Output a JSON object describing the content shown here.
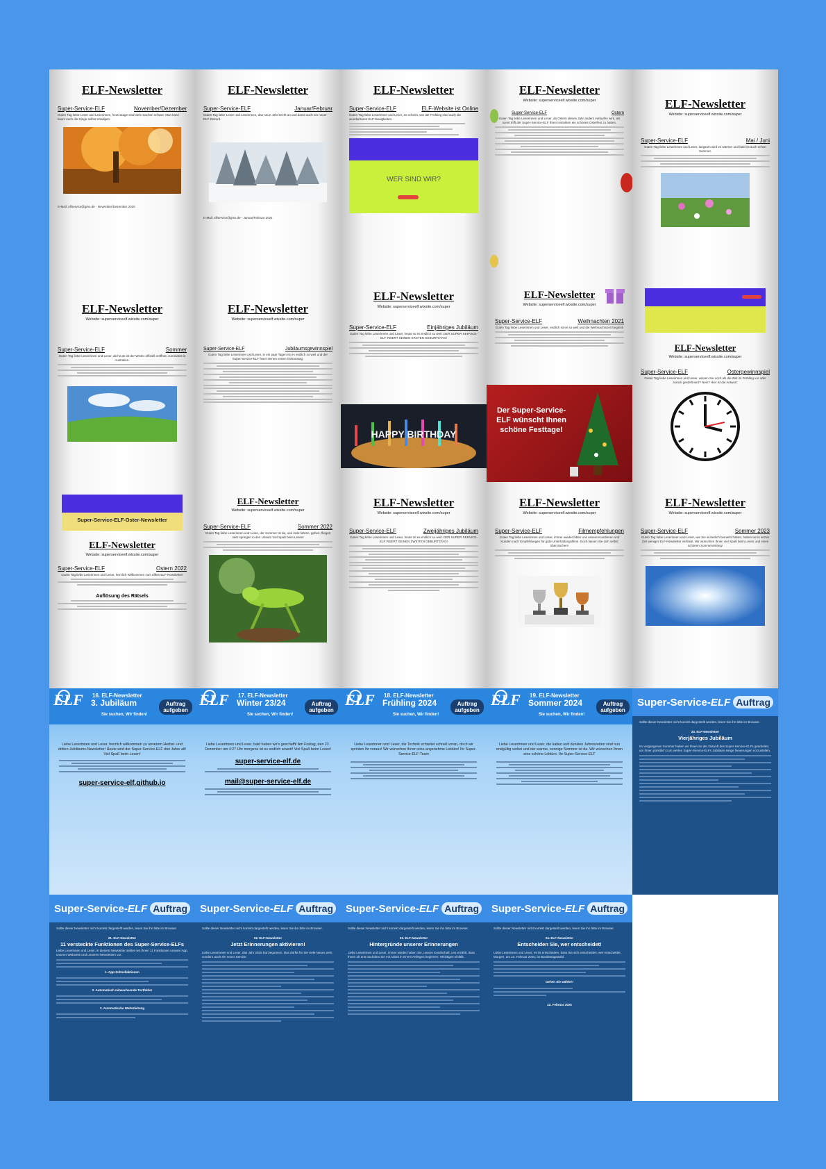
{
  "tiles": [
    {
      "title": "ELF-Newsletter",
      "left": "Super-Service-ELF",
      "right": "November/Dezember",
      "email": "E-Mail: elfservice@gmx.de  ·  November/Dezember 2020",
      "text": "Guten Tag liebe Leser und Leserinnen, heutzutage sind viele Sachen schwer. Man kann kaum noch die Dinge selbst erledigen."
    },
    {
      "title": "ELF-Newsletter",
      "left": "Super-Service-ELF",
      "right": "Januar/Februar",
      "email": "E-Mail: elfservice@gmx.de  ·  Januar/Februar 2021",
      "text": "Guten Tag liebe Leser und Leserinnen, das neue Jahr bricht an und damit auch ein neuer ELF-Rekord."
    },
    {
      "title": "ELF-Newsletter",
      "left": "Super-Service-ELF",
      "right": "ELF-Website ist Online",
      "banner": "WER SIND WIR?",
      "text": "Guten Tag liebe Leserinnen und Leser, es scheint, wie der Frühling sind auch die wunderbaren ELF-Neuigkeiten."
    },
    {
      "title": "ELF-Newsletter",
      "web": "Website: superserviceelf.wixsite.com/super",
      "left": "Super-Service-ELF",
      "right": "Ostern",
      "text": "Guten Tag liebe Leserinnen und Leser, da Ostern dieses Jahr anders verlaufen wird, als sonst trifft der Super-Service-ELF Ihren Instinkten ein schönes Osterfest zu haben."
    },
    {
      "title": "ELF-Newsletter",
      "web": "Website: superserviceelf.wixsite.com/super",
      "left": "Super-Service-ELF",
      "right": "Mai / Juni",
      "text": "Guten Tag liebe Leserinnen und Leser, langsam wird es wärmer und bald ist auch schon Sommer."
    },
    {
      "title": "ELF-Newsletter",
      "web": "Website: superserviceelf.wixsite.com/super",
      "left": "Super-Service-ELF",
      "right": "Sommer",
      "text": "Guten Tag liebe Leserinnen und Leser, ab heute ist der Winter offiziell eröffnet, zumindest in Australien."
    },
    {
      "title": "ELF-Newsletter",
      "web": "Website: superserviceelf.wixsite.com/super",
      "left": "Super-Service-ELF",
      "right": "Jubiläumsgewinnspiel",
      "text": "Guten Tag liebe Leserinnen und Leser, in ein paar Tagen ist es endlich so weit und der Super-Service-ELF feiert seinen ersten Geburtstag."
    },
    {
      "title": "ELF-Newsletter",
      "web": "Website: superserviceelf.wixsite.com/super",
      "left": "Super-Service-ELF",
      "right": "Einjähriges Jubiläum",
      "banner": "HAPPY BIRTHDAY",
      "text": "Guten Tag liebe Leserinnen und Leser, heute ist es endlich so weit: DER SUPER-SERVICE-ELF FEIERT SEINEN ERSTEN GEBURTSTAG!"
    },
    {
      "title": "ELF-Newsletter",
      "web": "Website: superserviceelf.wixsite.com/super",
      "left": "Super-Service-ELF",
      "right": "Weihnachten 2021",
      "banner": "Der Super-Service-ELF wünscht Ihnen schöne Festtage!",
      "text": "Guten Tag liebe Leserinnen und Leser, endlich ist es so weit und die Weihnachtszeit beginnt!"
    },
    {
      "title": "ELF-Newsletter",
      "web": "Website: superserviceelf.wixsite.com/super",
      "left": "Super-Service-ELF",
      "right": "Ostergewinnspiel",
      "text": "Guten Tag liebe Leserinnen und Leser, wissen Sie noch als die Zeit im Frühling vor oder zurück gestellt wird? Nein? Hier ist die Antwort:"
    },
    {
      "title": "ELF-Newsletter",
      "web": "Website: superserviceelf.wixsite.com/super",
      "left": "Super-Service-ELF",
      "right": "Ostern 2022",
      "banner": "Super-Service-ELF-Oster-Newsletter",
      "sub": "Auflösung des Rätsels",
      "text": "Guten Tag liebe Leserinnen und Leser, herzlich Willkommen zum elften ELF-Newsletter!"
    },
    {
      "title": "ELF-Newsletter",
      "web": "Website: superserviceelf.wixsite.com/super",
      "left": "Super-Service-ELF",
      "right": "Sommer 2022",
      "text": "Guten Tag liebe Leserinnen und Leser, der Sommer ist da, und viele fahren, gehen, fliegen oder springen in den Urlaub! Viel Spaß beim Lesen!"
    },
    {
      "title": "ELF-Newsletter",
      "web": "Website: superserviceelf.wixsite.com/super",
      "left": "Super-Service-ELF",
      "right": "Zweijähriges Jubiläum",
      "text": "Guten Tag liebe Leserinnen und Leser, heute ist es endlich so weit: DER SUPER-SERVICE-ELF FEIERT SEINEN ZWEITEN GEBURTSTAG!"
    },
    {
      "title": "ELF-Newsletter",
      "web": "Website: superserviceelf.wixsite.com/super",
      "left": "Super-Service-ELF",
      "right": "Filmempfehlungen",
      "text": "Guten Tag liebe Leserinnen und Leser, immer wieder bitten uns unsere Kundinnen und Kunden nach Empfehlungen für gute Unterhaltungsfilme. Doch lassen Sie sich selbst überraschen!"
    },
    {
      "title": "ELF-Newsletter",
      "web": "Website: superserviceelf.wixsite.com/super",
      "left": "Super-Service-ELF",
      "right": "Sommer 2023",
      "text": "Guten Tag liebe Leserinnen und Leser, wie Sie sicherlich bemerkt haben, haben wir in letzter Zeit weniger ELF-Newsletter verfasst. Wir wünschen Ihnen viel Spaß beim Lesen und einen schönen Sommeranfang!"
    }
  ],
  "blue": [
    {
      "top": "16. ELF-Newsletter",
      "season": "3. Jubiläum",
      "tag": "Sie suchen, Wir finden!",
      "btn": "Auftrag aufgeben",
      "link": "super-service-elf.github.io",
      "text": "Liebe Leserinnen und Leser, herzlich willkommen zu unserem Herbst- und dritten Jubiläums-Newsletter! Heute wird der Super-Service-ELF drei Jahre alt! Viel Spaß beim Lesen!"
    },
    {
      "top": "17. ELF-Newsletter",
      "season": "Winter 23/24",
      "tag": "Sie suchen, Wir finden!",
      "btn": "Auftrag aufgeben",
      "link": "super-service-elf.de",
      "link2": "mail@super-service-elf.de",
      "text": "Liebe Leserinnen und Leser, bald haben wir's geschafft! Am Freitag, den 22. Dezember um 4:27 Uhr morgens ist es endlich soweit! Viel Spaß beim Lesen!"
    },
    {
      "top": "18. ELF-Newsletter",
      "season": "Frühling 2024",
      "tag": "Sie suchen, Wir finden!",
      "btn": "Auftrag aufgeben",
      "text": "Liebe Leserinnen und Leser, die Technik schreitet schnell voran, doch wir sprinten ihr voraus! Wir wünschen Ihnen eine angenehme Lektüre! Ihr Super-Service-ELF-Team"
    },
    {
      "top": "19. ELF-Newsletter",
      "season": "Sommer 2024",
      "tag": "Sie suchen, Wir finden!",
      "btn": "Auftrag aufgeben",
      "text": "Liebe Leserinnen und Leser, die kalten und dunklen Jahreszeiten sind nun endgültig vorbei und der warme, sonnige Sommer ist da. Wir wünschen Ihnen eine schöne Lektüre, Ihr Super-Service-ELF"
    }
  ],
  "dark": [
    {
      "brand": "Super-Service-",
      "brand2": "ELF",
      "btn": "Auftrag",
      "notice": "Sollte dieser Newsletter nicht korrekt dargestellt werden, lesen Sie ihn bitte im Browser.",
      "num": "20. ELF-Newsletter",
      "title": "Vierjähriges Jubiläum",
      "text": "Im vergangenen Sommer haben wir Ihnen an der Zukunft des Super-Service-ELFs gearbeitet, um Ihnen pünktlich zum vierten Super-Service-ELFs Jubiläum einige Neuerungen vorzustellen."
    },
    {
      "brand": "Super-Service-",
      "brand2": "ELF",
      "btn": "Auftrag",
      "notice": "Sollte dieser Newsletter nicht korrekt dargestellt werden, lesen Sie ihn bitte im Browser.",
      "num": "21. ELF-Newsletter",
      "title": "11 versteckte Funktionen des Super-Service-ELFs",
      "h1": "1. App-Schnellaktionen",
      "h2": "2. Automatisch mitwachsende Textfelder",
      "h3": "3. Automatische Weiterleitung",
      "text": "Liebe Leserinnen und Leser, in diesem Newsletter stellen wir Ihnen 11 Funktionen unserer App, unserer Webseite und unseres Newsletters vor."
    },
    {
      "brand": "Super-Service-",
      "brand2": "ELF",
      "btn": "Auftrag",
      "notice": "Sollte dieser Newsletter nicht korrekt dargestellt werden, lesen Sie ihn bitte im Browser.",
      "num": "22. ELF-Newsletter",
      "title": "Jetzt Erinnerungen aktivieren!",
      "text": "Liebe Leserinnen und Leser, das Jahr 2025 hat begonnen. Das dürfte für Sie viele Neues sein, sondern auch ein neuer Service."
    },
    {
      "brand": "Super-Service-",
      "brand2": "ELF",
      "btn": "Auftrag",
      "notice": "Sollte dieser Newsletter nicht korrekt dargestellt werden, lesen Sie ihn bitte im Browser.",
      "num": "23. ELF-Newsletter",
      "title": "Hintergründe unserer Erinnerungen",
      "text": "Liebe Leserinnen und Leser, immer wieder haben Sie, unsere Kundschaft, uns erzählt, dass Ihnen oft erst nachdem Sie mit Arbeit in einem Anliegen beginnen, Wichtiges einfällt."
    },
    {
      "brand": "Super-Service-",
      "brand2": "ELF",
      "btn": "Auftrag",
      "notice": "Sollte dieser Newsletter nicht korrekt dargestellt werden, lesen Sie ihn bitte im Browser.",
      "num": "24. ELF-Newsletter",
      "title": "Entscheiden Sie, wer entscheidet!",
      "h1": "Gehen Sie wählen!",
      "date": "22. Februar 2025",
      "text": "Liebe Leserinnen und Leser, es ist entschieden, dass Sie sich entscheiden, wer entscheidet. Morgen, am 23. Februar 2025, ist Bundestagswahl."
    }
  ]
}
